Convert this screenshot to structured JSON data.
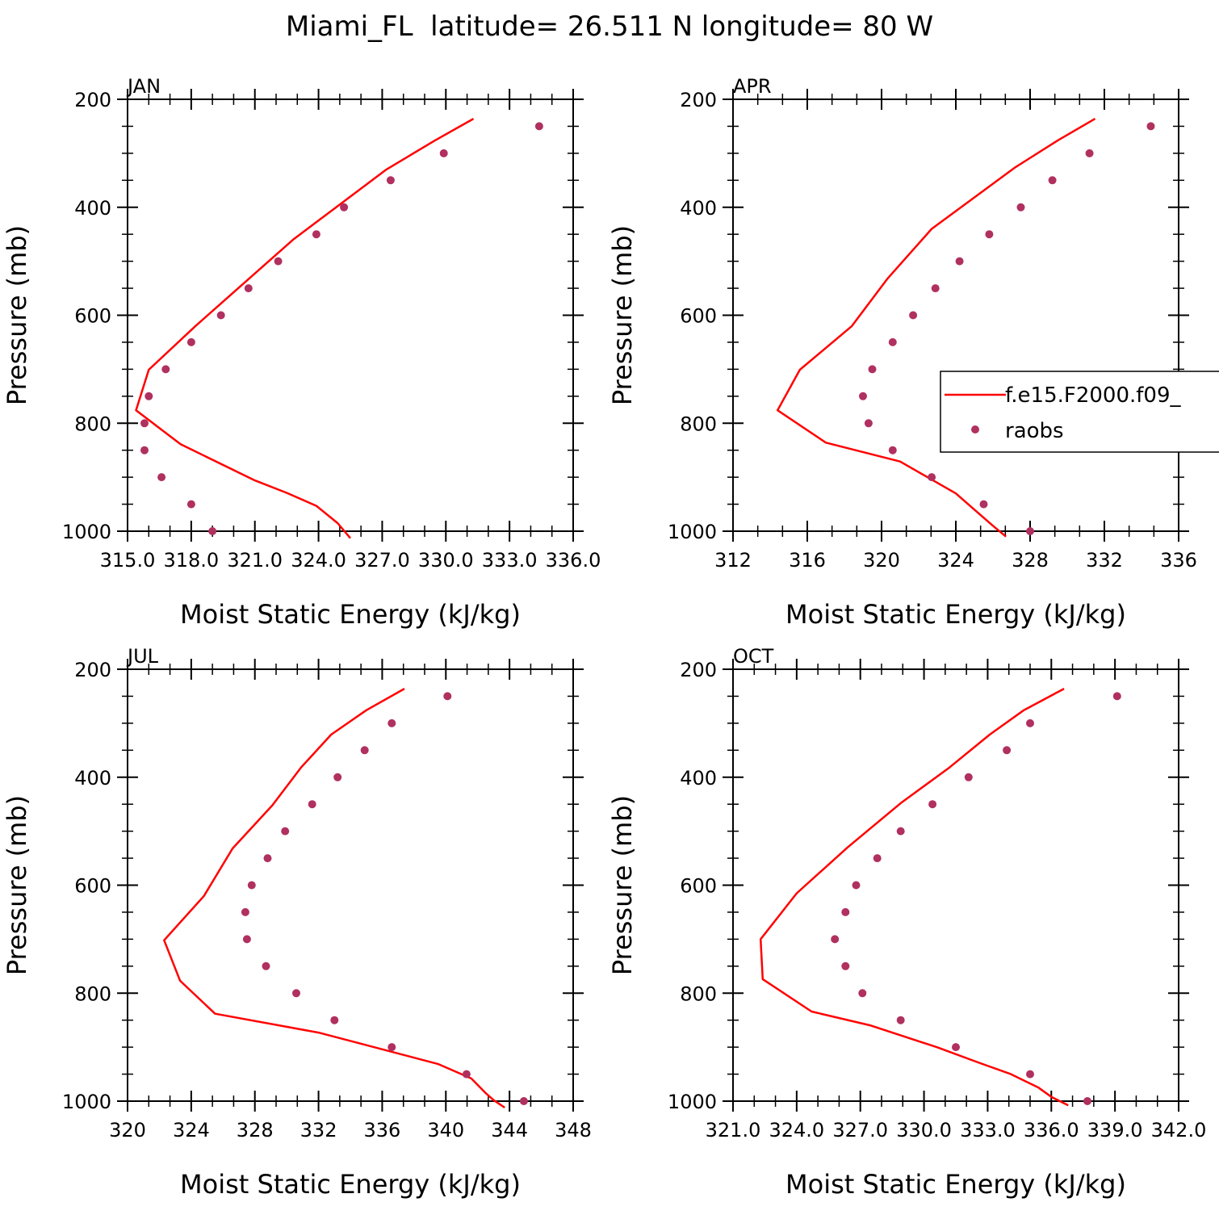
{
  "title": "Miami_FL  latitude= 26.511 N longitude= 80 W",
  "legend": {
    "model_label": "f.e15.F2000.f09_",
    "obs_label": "raobs",
    "model_color": "#ff0000",
    "obs_color": "#b03060"
  },
  "chart_data": [
    {
      "type": "line",
      "panel": "JAN",
      "xlabel": "Moist Static Energy (kJ/kg)",
      "ylabel": "Pressure (mb)",
      "xlim": [
        315.0,
        336.0
      ],
      "xticks": [
        "315.0",
        "318.0",
        "321.0",
        "324.0",
        "327.0",
        "330.0",
        "333.0",
        "336.0"
      ],
      "xtick_values": [
        315,
        318,
        321,
        324,
        327,
        330,
        333,
        336
      ],
      "ylim": [
        200,
        1000
      ],
      "yticks": [
        "200",
        "400",
        "600",
        "800",
        "1000"
      ],
      "series": [
        {
          "name": "f.e15.F2000.f09_",
          "kind": "line",
          "x": [
            331.3,
            329.5,
            327.2,
            322.8,
            318.2,
            316.0,
            315.4,
            317.5,
            321.0,
            322.5,
            323.9,
            324.9,
            325.5
          ],
          "y": [
            236,
            276,
            330,
            460,
            620,
            701,
            776,
            839,
            906,
            929,
            953,
            985,
            1013
          ]
        },
        {
          "name": "raobs",
          "kind": "scatter",
          "x": [
            334.4,
            329.9,
            327.4,
            325.2,
            323.9,
            322.1,
            320.7,
            319.4,
            318.0,
            316.8,
            316.0,
            315.8,
            315.8,
            316.6,
            318.0,
            319.0
          ],
          "y": [
            250,
            300,
            350,
            400,
            450,
            500,
            550,
            600,
            650,
            700,
            750,
            800,
            850,
            900,
            950,
            1000
          ]
        }
      ]
    },
    {
      "type": "line",
      "panel": "APR",
      "xlabel": "Moist Static Energy (kJ/kg)",
      "ylabel": "Pressure (mb)",
      "xlim": [
        312,
        336
      ],
      "xticks": [
        "312",
        "316",
        "320",
        "324",
        "328",
        "332",
        "336"
      ],
      "xtick_values": [
        312,
        316,
        320,
        324,
        328,
        332,
        336
      ],
      "ylim": [
        200,
        1000
      ],
      "yticks": [
        "200",
        "400",
        "600",
        "800",
        "1000"
      ],
      "series": [
        {
          "name": "f.e15.F2000.f09_",
          "kind": "line",
          "x": [
            331.5,
            329.5,
            327.2,
            322.7,
            320.3,
            318.4,
            315.6,
            314.4,
            317.0,
            321.0,
            324.0,
            325.0,
            326.0,
            326.7
          ],
          "y": [
            236,
            276,
            326,
            440,
            533,
            620,
            701,
            776,
            836,
            871,
            930,
            960,
            990,
            1010
          ]
        },
        {
          "name": "raobs",
          "kind": "scatter",
          "x": [
            334.5,
            331.2,
            329.2,
            327.5,
            325.8,
            324.2,
            322.9,
            321.7,
            320.6,
            319.5,
            319.0,
            319.3,
            320.6,
            322.7,
            325.5,
            328.0
          ],
          "y": [
            250,
            300,
            350,
            400,
            450,
            500,
            550,
            600,
            650,
            700,
            750,
            800,
            850,
            900,
            950,
            1000
          ]
        }
      ]
    },
    {
      "type": "line",
      "panel": "JUL",
      "xlabel": "Moist Static Energy (kJ/kg)",
      "ylabel": "Pressure (mb)",
      "xlim": [
        320,
        348
      ],
      "xticks": [
        "320",
        "324",
        "328",
        "332",
        "336",
        "340",
        "344",
        "348"
      ],
      "xtick_values": [
        320,
        324,
        328,
        332,
        336,
        340,
        344,
        348
      ],
      "ylim": [
        200,
        1000
      ],
      "yticks": [
        "200",
        "400",
        "600",
        "800",
        "1000"
      ],
      "series": [
        {
          "name": "f.e15.F2000.f09_",
          "kind": "line",
          "x": [
            337.4,
            335.0,
            332.8,
            330.9,
            329.1,
            326.6,
            324.8,
            322.3,
            323.3,
            325.5,
            332.0,
            339.5,
            341.6,
            342.5,
            343.0,
            343.7
          ],
          "y": [
            236,
            276,
            321,
            382,
            452,
            532,
            620,
            702,
            777,
            838,
            873,
            931,
            958,
            985,
            998,
            1012
          ]
        },
        {
          "name": "raobs",
          "kind": "scatter",
          "x": [
            340.1,
            336.6,
            334.9,
            333.2,
            331.6,
            329.9,
            328.8,
            327.8,
            327.4,
            327.5,
            328.7,
            330.6,
            333.0,
            336.6,
            341.3,
            344.9
          ],
          "y": [
            250,
            300,
            350,
            400,
            450,
            500,
            550,
            600,
            650,
            700,
            750,
            800,
            850,
            900,
            950,
            1000
          ]
        }
      ]
    },
    {
      "type": "line",
      "panel": "OCT",
      "xlabel": "Moist Static Energy (kJ/kg)",
      "ylabel": "Pressure (mb)",
      "xlim": [
        321.0,
        342.0
      ],
      "xticks": [
        "321.0",
        "324.0",
        "327.0",
        "330.0",
        "333.0",
        "336.0",
        "339.0",
        "342.0"
      ],
      "xtick_values": [
        321,
        324,
        327,
        330,
        333,
        336,
        339,
        342
      ],
      "ylim": [
        200,
        1000
      ],
      "yticks": [
        "200",
        "400",
        "600",
        "800",
        "1000"
      ],
      "series": [
        {
          "name": "f.e15.F2000.f09_",
          "kind": "line",
          "x": [
            336.6,
            334.7,
            333.1,
            331.2,
            328.9,
            326.4,
            324.0,
            322.3,
            322.4,
            324.7,
            327.5,
            330.6,
            332.6,
            334.1,
            335.4,
            336.0,
            336.8
          ],
          "y": [
            236,
            276,
            321,
            382,
            448,
            530,
            615,
            700,
            774,
            834,
            860,
            900,
            929,
            950,
            975,
            992,
            1008
          ]
        },
        {
          "name": "raobs",
          "kind": "scatter",
          "x": [
            339.1,
            335.0,
            333.9,
            332.1,
            330.4,
            328.9,
            327.8,
            326.8,
            326.3,
            325.8,
            326.3,
            327.1,
            328.9,
            331.5,
            335.0,
            337.7
          ],
          "y": [
            250,
            300,
            350,
            400,
            450,
            500,
            550,
            600,
            650,
            700,
            750,
            800,
            850,
            900,
            950,
            1000
          ]
        }
      ]
    }
  ]
}
